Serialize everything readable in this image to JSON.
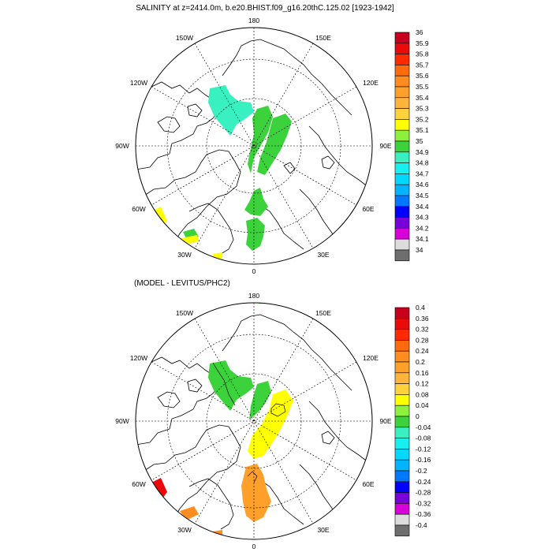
{
  "title": "SALINITY at z=2414.0m, b.e20.BHIST.f09_g16.20thC.125.02 [1923-1942]",
  "subtitle": "(MODEL - LEVITUS/PHC2)",
  "panels": [
    {
      "lon_labels": {
        "top": "180",
        "w150": "150W",
        "e150": "150E",
        "w120": "120W",
        "e120": "120E",
        "w90": "90W",
        "e90": "90E",
        "w60": "60W",
        "e60": "60E",
        "w30": "30W",
        "e30": "30E",
        "bottom": "0"
      },
      "colorbar": {
        "labels": [
          "36",
          "35.9",
          "35.8",
          "35.7",
          "35.6",
          "35.5",
          "35.4",
          "35.3",
          "35.2",
          "35.1",
          "35",
          "34.9",
          "34.8",
          "34.7",
          "34.6",
          "34.5",
          "34.4",
          "34.3",
          "34.2",
          "34.1",
          "34"
        ],
        "colors": [
          "#c8001e",
          "#ea0a0a",
          "#ff2a00",
          "#ff6a0c",
          "#ff8c1e",
          "#ffa02a",
          "#ffb43c",
          "#ffd23c",
          "#ffff00",
          "#8cf03c",
          "#3cd23c",
          "#38f0c0",
          "#18f0f0",
          "#00d8ff",
          "#00b4ff",
          "#0078ff",
          "#0000ff",
          "#7800d8",
          "#d800d8",
          "#dcdcdc",
          "#6e6e6e"
        ]
      }
    },
    {
      "lon_labels": {
        "top": "180",
        "w150": "150W",
        "e150": "150E",
        "w120": "120W",
        "e120": "120E",
        "w90": "90W",
        "e90": "90E",
        "w60": "60W",
        "e60": "60E",
        "w30": "30W",
        "e30": "30E",
        "bottom": "0"
      },
      "colorbar": {
        "labels": [
          "0.4",
          "0.36",
          "0.32",
          "0.28",
          "0.24",
          "0.2",
          "0.16",
          "0.12",
          "0.08",
          "0.04",
          "0",
          "-0.04",
          "-0.08",
          "-0.12",
          "-0.16",
          "-0.2",
          "-0.24",
          "-0.28",
          "-0.32",
          "-0.36",
          "-0.4"
        ],
        "colors": [
          "#c8001e",
          "#ea0a0a",
          "#ff2a00",
          "#ff6a0c",
          "#ff8c1e",
          "#ffa02a",
          "#ffb43c",
          "#ffd23c",
          "#ffff00",
          "#8cf03c",
          "#3cd23c",
          "#38f0c0",
          "#18f0f0",
          "#00d8ff",
          "#00b4ff",
          "#0078ff",
          "#0000ff",
          "#7800d8",
          "#d800d8",
          "#dcdcdc",
          "#6e6e6e"
        ]
      }
    }
  ]
}
